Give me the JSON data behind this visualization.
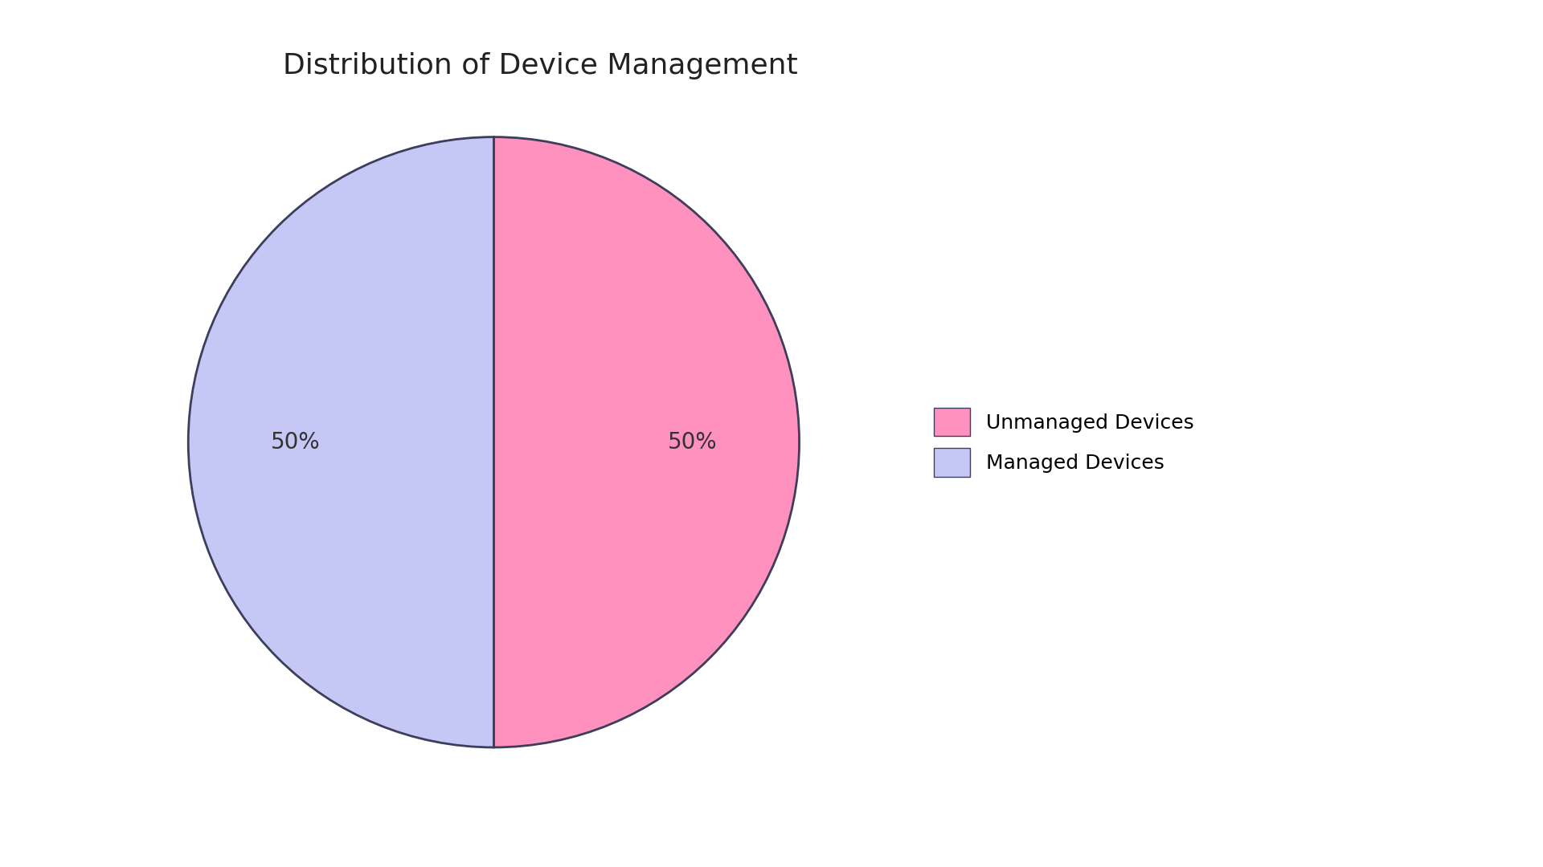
{
  "title": "Distribution of Device Management",
  "slices": [
    50,
    50
  ],
  "labels": [
    "Unmanaged Devices",
    "Managed Devices"
  ],
  "colors": [
    "#FF91BE",
    "#C5C8F5"
  ],
  "edge_color": "#3d3d5c",
  "edge_linewidth": 2.0,
  "start_angle": 90,
  "title_fontsize": 26,
  "title_color": "#222222",
  "autopct_fontsize": 20,
  "autopct_color": "#333333",
  "legend_fontsize": 18,
  "background_color": "#ffffff",
  "pct_distance": 0.65
}
